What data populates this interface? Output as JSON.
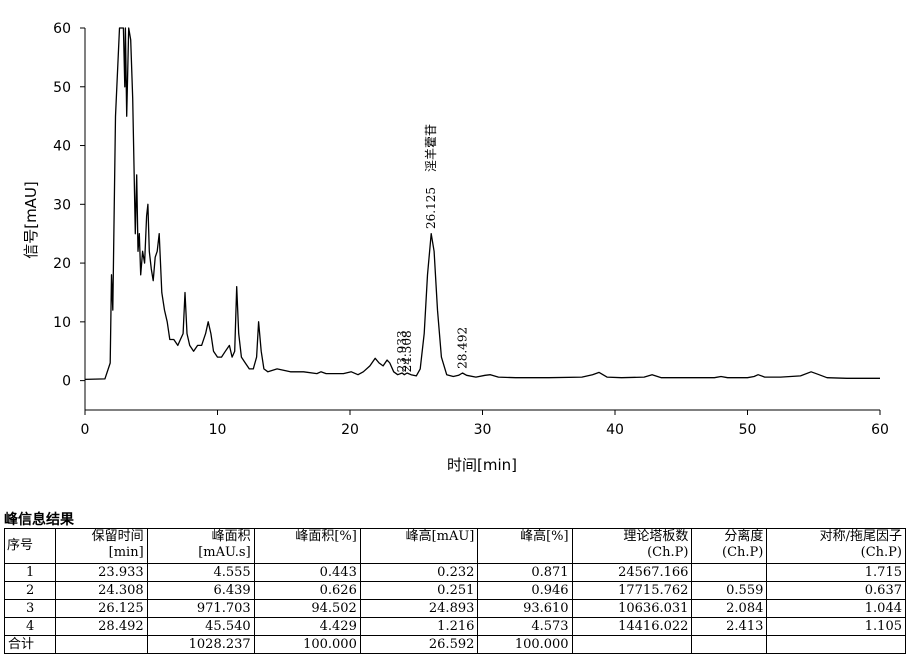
{
  "chart_data": {
    "type": "line",
    "title": "",
    "xlabel": "时间[min]",
    "ylabel": "信号[mAU]",
    "xlim": [
      0,
      60
    ],
    "ylim": [
      -5,
      60
    ],
    "x_ticks": [
      0,
      10,
      20,
      30,
      40,
      50,
      60
    ],
    "y_ticks": [
      0,
      10,
      20,
      30,
      40,
      50,
      60
    ],
    "grid": false,
    "series": [
      {
        "values_note": "",
        "x": [
          0,
          1.5,
          1.9,
          2.0,
          2.1,
          2.3,
          2.6,
          2.9,
          3.0,
          3.05,
          3.15,
          3.3,
          3.45,
          3.6,
          3.8,
          3.9,
          4.0,
          4.1,
          4.2,
          4.35,
          4.5,
          4.65,
          4.75,
          4.85,
          5.0,
          5.15,
          5.3,
          5.45,
          5.6,
          5.8,
          6.0,
          6.2,
          6.4,
          6.7,
          7.0,
          7.2,
          7.4,
          7.55,
          7.7,
          7.9,
          8.2,
          8.5,
          8.8,
          9.1,
          9.3,
          9.5,
          9.7,
          10.0,
          10.3,
          10.6,
          10.9,
          11.1,
          11.3,
          11.45,
          11.6,
          11.8,
          12.1,
          12.4,
          12.7,
          12.95,
          13.1,
          13.3,
          13.5,
          13.8,
          14.5,
          15.5,
          16.5,
          17.5,
          17.8,
          18.2,
          19.5,
          20.1,
          20.6,
          21.0,
          21.5,
          21.9,
          22.2,
          22.5,
          22.8,
          23.0,
          23.3,
          23.6,
          23.93,
          24.1,
          24.31,
          24.6,
          25.0,
          25.3,
          25.6,
          25.85,
          26.125,
          26.35,
          26.6,
          26.9,
          27.3,
          27.8,
          28.2,
          28.49,
          28.8,
          29.5,
          30.2,
          30.6,
          31.2,
          32.5,
          35.0,
          37.5,
          38.3,
          38.8,
          39.4,
          40.5,
          42.2,
          42.8,
          43.5,
          45.0,
          47.5,
          48.0,
          48.5,
          50.0,
          50.5,
          50.8,
          51.3,
          52.5,
          54.0,
          54.8,
          55.3,
          56.0,
          57.5,
          60
        ],
        "y": [
          0.2,
          0.3,
          3,
          18,
          12,
          45,
          60,
          60,
          50,
          60,
          45,
          60,
          58,
          48,
          25,
          35,
          22,
          25,
          18,
          22,
          20,
          28,
          30,
          22,
          19,
          17,
          21,
          22,
          25,
          15,
          12,
          10,
          7,
          7,
          6,
          7,
          8,
          15,
          8,
          6,
          5,
          6,
          6,
          8,
          10,
          8,
          5,
          4,
          4,
          5,
          6,
          4,
          5,
          16,
          8,
          4,
          3,
          2,
          2,
          4,
          10,
          5,
          2,
          1.5,
          2,
          1.5,
          1.5,
          1.2,
          1.5,
          1.2,
          1.2,
          1.5,
          1.0,
          1.5,
          2.5,
          3.8,
          3.0,
          2.5,
          3.5,
          3.0,
          1.5,
          1.0,
          1.3,
          1.0,
          1.3,
          1.0,
          0.8,
          2,
          8,
          18,
          25,
          22,
          12,
          4,
          1.0,
          0.7,
          0.9,
          1.3,
          0.9,
          0.6,
          0.9,
          1.0,
          0.6,
          0.5,
          0.5,
          0.6,
          1.0,
          1.4,
          0.6,
          0.5,
          0.6,
          1.0,
          0.5,
          0.5,
          0.5,
          0.7,
          0.5,
          0.5,
          0.7,
          1.0,
          0.6,
          0.6,
          0.8,
          1.5,
          1.1,
          0.5,
          0.4,
          0.4
        ]
      }
    ],
    "annotations": [
      {
        "x": 23.933,
        "y": 1.4,
        "label": "23.933"
      },
      {
        "x": 24.308,
        "y": 1.4,
        "label": "24.308"
      },
      {
        "x": 26.125,
        "y": 25.8,
        "label": "26.125"
      },
      {
        "x": 26.125,
        "y": 35.5,
        "label": "淫羊藿苷"
      },
      {
        "x": 28.492,
        "y": 2.0,
        "label": "28.492"
      }
    ]
  },
  "table": {
    "title": "峰信息结果",
    "headers": [
      {
        "top": "序号",
        "bottom": ""
      },
      {
        "top": "保留时间",
        "bottom": "[min]"
      },
      {
        "top": "峰面积",
        "bottom": "[mAU.s]"
      },
      {
        "top": "峰面积[%]",
        "bottom": ""
      },
      {
        "top": "峰高[mAU]",
        "bottom": ""
      },
      {
        "top": "峰高[%]",
        "bottom": ""
      },
      {
        "top": "理论塔板数",
        "bottom": "(Ch.P)"
      },
      {
        "top": "分离度",
        "bottom": "(Ch.P)"
      },
      {
        "top": "对称/拖尾因子",
        "bottom": "(Ch.P)"
      }
    ],
    "rows": [
      [
        "1",
        "23.933",
        "4.555",
        "0.443",
        "0.232",
        "0.871",
        "24567.166",
        "",
        "1.715"
      ],
      [
        "2",
        "24.308",
        "6.439",
        "0.626",
        "0.251",
        "0.946",
        "17715.762",
        "0.559",
        "0.637"
      ],
      [
        "3",
        "26.125",
        "971.703",
        "94.502",
        "24.893",
        "93.610",
        "10636.031",
        "2.084",
        "1.044"
      ],
      [
        "4",
        "28.492",
        "45.540",
        "4.429",
        "1.216",
        "4.573",
        "14416.022",
        "2.413",
        "1.105"
      ],
      [
        "合计",
        "",
        "1028.237",
        "100.000",
        "26.592",
        "100.000",
        "",
        "",
        ""
      ]
    ]
  }
}
